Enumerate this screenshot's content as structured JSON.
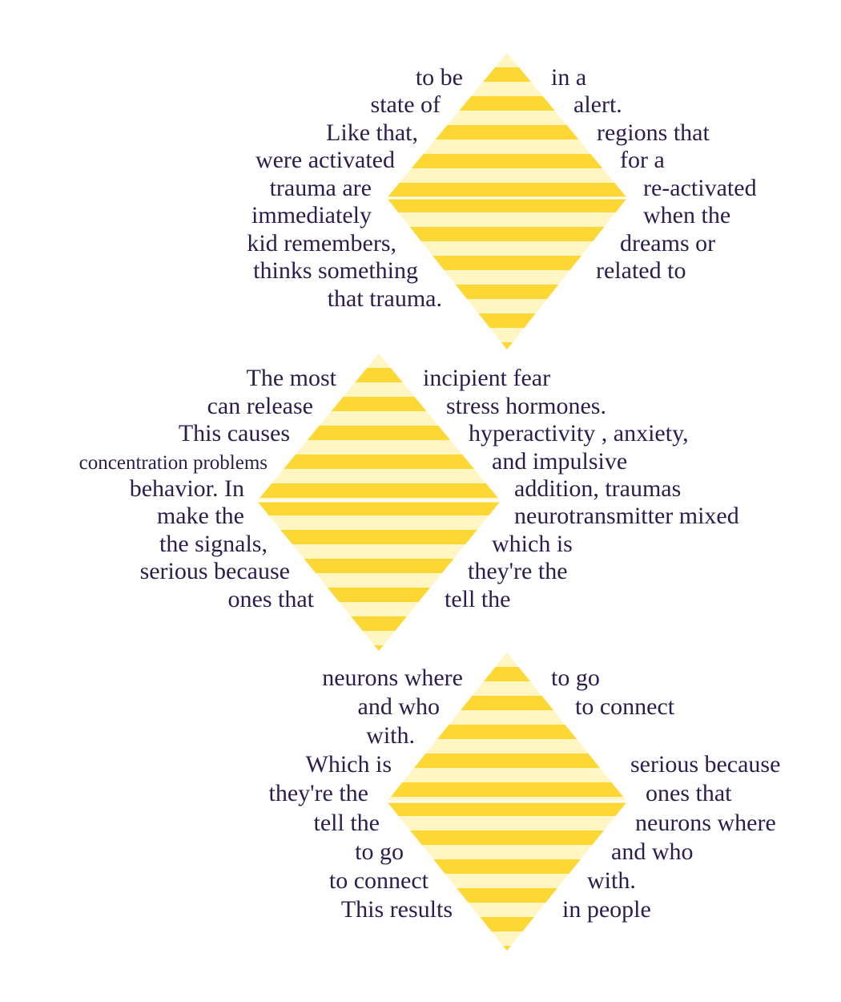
{
  "colors": {
    "stripe_dark": "#fdd835",
    "stripe_light": "#fff6c4",
    "text": "#2b1d4d",
    "divider": "#ffffff"
  },
  "diamonds": [
    {
      "left_lines": [
        "to be",
        "state of",
        "Like that,",
        "were activated",
        "trauma are",
        "immediately",
        "kid remembers,",
        "thinks something",
        "that trauma."
      ],
      "right_lines": [
        "in a",
        "alert.",
        "regions that",
        "for a",
        "re-activated",
        "when the",
        "dreams or",
        "related to"
      ]
    },
    {
      "left_lines": [
        "The most",
        "can release",
        "This causes",
        "concentration problems",
        "behavior. In",
        "make the",
        "the signals,",
        "serious because",
        "ones that"
      ],
      "right_lines": [
        "incipient fear",
        "stress hormones.",
        "hyperactivity , anxiety,",
        "and impulsive",
        "addition, traumas",
        "neurotransmitter mixed",
        "which is",
        "they're the",
        "tell the"
      ]
    },
    {
      "left_lines": [
        "neurons where",
        "and who",
        "with.",
        "Which is",
        "they're the",
        "tell the",
        "to go",
        "to connect",
        "This results"
      ],
      "right_lines": [
        "to go",
        "to connect",
        "",
        "serious because",
        "ones that",
        "neurons where",
        "and who",
        "with.",
        "in people"
      ]
    }
  ]
}
